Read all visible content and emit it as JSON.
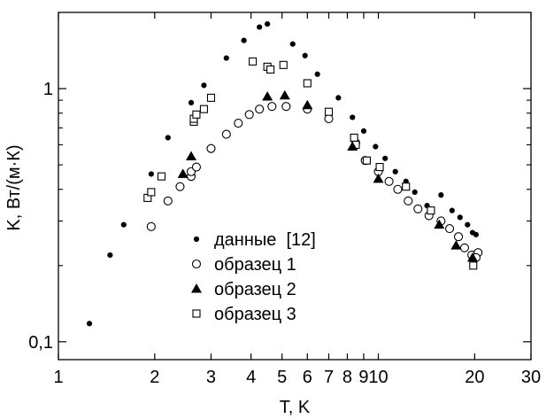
{
  "chart_data": {
    "type": "scatter",
    "xscale": "log",
    "yscale": "log",
    "xlim": [
      1,
      30
    ],
    "ylim": [
      0.085,
      2.0
    ],
    "xlabel": "T, K",
    "ylabel": "K, Вт/(м·К)",
    "x_ticks": [
      {
        "value": 1,
        "label": "1"
      },
      {
        "value": 2,
        "label": "2"
      },
      {
        "value": 3,
        "label": "3"
      },
      {
        "value": 4,
        "label": "4"
      },
      {
        "value": 5,
        "label": "5"
      },
      {
        "value": 6,
        "label": "6"
      },
      {
        "value": 7,
        "label": "7"
      },
      {
        "value": 8,
        "label": "8"
      },
      {
        "value": 9,
        "label": "9"
      },
      {
        "value": 10,
        "label": "10"
      },
      {
        "value": 20,
        "label": "20"
      },
      {
        "value": 30,
        "label": "30"
      }
    ],
    "y_ticks": [
      {
        "value": 0.1,
        "label": "0,1"
      },
      {
        "value": 1,
        "label": "1"
      }
    ],
    "grid": false,
    "legend_position": "center",
    "series": [
      {
        "name": "данные  [12]",
        "marker": "dot",
        "points": [
          [
            1.25,
            0.118
          ],
          [
            1.45,
            0.22
          ],
          [
            1.6,
            0.29
          ],
          [
            1.95,
            0.46
          ],
          [
            2.2,
            0.64
          ],
          [
            2.6,
            0.88
          ],
          [
            2.85,
            1.03
          ],
          [
            3.35,
            1.32
          ],
          [
            3.8,
            1.55
          ],
          [
            4.25,
            1.75
          ],
          [
            4.5,
            1.8
          ],
          [
            5.4,
            1.5
          ],
          [
            5.9,
            1.35
          ],
          [
            6.45,
            1.14
          ],
          [
            7.5,
            0.92
          ],
          [
            8.3,
            0.77
          ],
          [
            9.0,
            0.68
          ],
          [
            9.8,
            0.59
          ],
          [
            10.5,
            0.53
          ],
          [
            11.3,
            0.47
          ],
          [
            12.2,
            0.43
          ],
          [
            13.0,
            0.39
          ],
          [
            14.2,
            0.345
          ],
          [
            15.7,
            0.38
          ],
          [
            17.0,
            0.33
          ],
          [
            18.0,
            0.31
          ],
          [
            19.0,
            0.29
          ],
          [
            19.7,
            0.27
          ],
          [
            20.2,
            0.265
          ]
        ]
      },
      {
        "name": "образец 1",
        "marker": "open-circle",
        "points": [
          [
            1.95,
            0.285
          ],
          [
            2.2,
            0.36
          ],
          [
            2.4,
            0.41
          ],
          [
            2.6,
            0.45
          ],
          [
            2.6,
            0.47
          ],
          [
            2.7,
            0.49
          ],
          [
            3.0,
            0.58
          ],
          [
            3.35,
            0.66
          ],
          [
            3.65,
            0.73
          ],
          [
            3.95,
            0.79
          ],
          [
            4.25,
            0.83
          ],
          [
            4.65,
            0.85
          ],
          [
            5.15,
            0.85
          ],
          [
            6.0,
            0.83
          ],
          [
            7.0,
            0.76
          ],
          [
            8.5,
            0.61
          ],
          [
            9.1,
            0.52
          ],
          [
            10.0,
            0.47
          ],
          [
            10.8,
            0.43
          ],
          [
            11.5,
            0.4
          ],
          [
            12.4,
            0.36
          ],
          [
            13.3,
            0.335
          ],
          [
            14.4,
            0.315
          ],
          [
            15.7,
            0.3
          ],
          [
            16.7,
            0.28
          ],
          [
            17.8,
            0.26
          ],
          [
            18.6,
            0.235
          ],
          [
            19.6,
            0.22
          ],
          [
            20.5,
            0.225
          ],
          [
            20.2,
            0.215
          ]
        ]
      },
      {
        "name": "образец 2",
        "marker": "filled-triangle",
        "points": [
          [
            2.45,
            0.46
          ],
          [
            2.6,
            0.54
          ],
          [
            4.5,
            0.93
          ],
          [
            5.1,
            0.94
          ],
          [
            6.0,
            0.86
          ],
          [
            8.3,
            0.59
          ],
          [
            10.0,
            0.44
          ],
          [
            15.5,
            0.29
          ],
          [
            17.5,
            0.24
          ],
          [
            19.7,
            0.215
          ]
        ]
      },
      {
        "name": "образец 3",
        "marker": "open-square",
        "points": [
          [
            1.9,
            0.37
          ],
          [
            1.95,
            0.39
          ],
          [
            2.1,
            0.45
          ],
          [
            2.65,
            0.74
          ],
          [
            2.65,
            0.76
          ],
          [
            2.7,
            0.79
          ],
          [
            2.85,
            0.83
          ],
          [
            3.0,
            0.92
          ],
          [
            4.05,
            1.28
          ],
          [
            4.5,
            1.22
          ],
          [
            4.6,
            1.19
          ],
          [
            5.05,
            1.24
          ],
          [
            6.0,
            1.05
          ],
          [
            7.0,
            0.81
          ],
          [
            8.4,
            0.64
          ],
          [
            8.5,
            0.6
          ],
          [
            9.2,
            0.52
          ],
          [
            10.1,
            0.49
          ],
          [
            12.2,
            0.41
          ],
          [
            14.6,
            0.33
          ],
          [
            19.8,
            0.2
          ]
        ]
      }
    ]
  }
}
